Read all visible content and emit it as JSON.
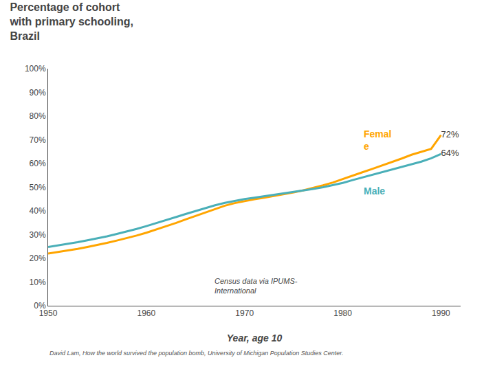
{
  "chart_data": {
    "type": "line",
    "title": "Percentage of cohort\nwith primary schooling,\nBrazil",
    "xlabel": "Year, age 10",
    "annotations": [
      "Census data via IPUMS-\nInternational"
    ],
    "footer": "David Lam, How the world survived the population bomb, University of Michigan Population Studies Center.",
    "x": [
      1950,
      1951,
      1952,
      1953,
      1954,
      1955,
      1956,
      1957,
      1958,
      1959,
      1960,
      1961,
      1962,
      1963,
      1964,
      1965,
      1966,
      1967,
      1968,
      1969,
      1970,
      1971,
      1972,
      1973,
      1974,
      1975,
      1976,
      1977,
      1978,
      1979,
      1980,
      1981,
      1982,
      1983,
      1984,
      1985,
      1986,
      1987,
      1988,
      1989,
      1990
    ],
    "series": [
      {
        "name": "Femal\ne",
        "color": "#FFA500",
        "values": [
          0.22,
          0.226,
          0.233,
          0.24,
          0.248,
          0.256,
          0.265,
          0.275,
          0.285,
          0.296,
          0.308,
          0.321,
          0.335,
          0.349,
          0.364,
          0.379,
          0.394,
          0.409,
          0.422,
          0.433,
          0.442,
          0.449,
          0.456,
          0.463,
          0.47,
          0.478,
          0.487,
          0.497,
          0.508,
          0.52,
          0.535,
          0.55,
          0.563,
          0.577,
          0.591,
          0.606,
          0.621,
          0.637,
          0.65,
          0.662,
          0.72
        ],
        "value_labels": [
          null,
          null,
          null,
          null,
          null,
          null,
          null,
          null,
          null,
          null,
          null,
          null,
          null,
          null,
          null,
          null,
          null,
          null,
          null,
          null,
          null,
          null,
          null,
          null,
          null,
          null,
          null,
          null,
          null,
          null,
          null,
          null,
          null,
          null,
          null,
          null,
          null,
          null,
          null,
          null,
          "72%"
        ]
      },
      {
        "name": "Male",
        "color": "#4AAFB8",
        "values": [
          0.248,
          0.254,
          0.261,
          0.268,
          0.276,
          0.284,
          0.293,
          0.303,
          0.313,
          0.324,
          0.336,
          0.348,
          0.361,
          0.374,
          0.387,
          0.4,
          0.412,
          0.424,
          0.434,
          0.443,
          0.45,
          0.456,
          0.462,
          0.468,
          0.473,
          0.479,
          0.486,
          0.493,
          0.5,
          0.508,
          0.518,
          0.53,
          0.541,
          0.552,
          0.562,
          0.573,
          0.584,
          0.596,
          0.608,
          0.622,
          0.64
        ],
        "value_labels": [
          null,
          null,
          null,
          null,
          null,
          null,
          null,
          null,
          null,
          null,
          null,
          null,
          null,
          null,
          null,
          null,
          null,
          null,
          null,
          null,
          null,
          null,
          null,
          null,
          null,
          null,
          null,
          null,
          null,
          null,
          null,
          null,
          null,
          null,
          null,
          null,
          null,
          null,
          null,
          null,
          "64%"
        ]
      }
    ],
    "xlim": [
      1950,
      1992
    ],
    "ylim": [
      0.0,
      1.0
    ],
    "xticks": [
      1950,
      1960,
      1970,
      1980,
      1990
    ],
    "yticks": [
      {
        "value": 0.0,
        "label": "0%"
      },
      {
        "value": 0.1,
        "label": "10%"
      },
      {
        "value": 0.2,
        "label": "20%"
      },
      {
        "value": 0.3,
        "label": "30%"
      },
      {
        "value": 0.4,
        "label": "40%"
      },
      {
        "value": 0.5,
        "label": "50%"
      },
      {
        "value": 0.6,
        "label": "60%"
      },
      {
        "value": 0.7,
        "label": "70%"
      },
      {
        "value": 0.8,
        "label": "80%"
      },
      {
        "value": 0.9,
        "label": "90%"
      },
      {
        "value": 1.0,
        "label": "100%"
      }
    ],
    "grid": false,
    "data_labels": true
  }
}
